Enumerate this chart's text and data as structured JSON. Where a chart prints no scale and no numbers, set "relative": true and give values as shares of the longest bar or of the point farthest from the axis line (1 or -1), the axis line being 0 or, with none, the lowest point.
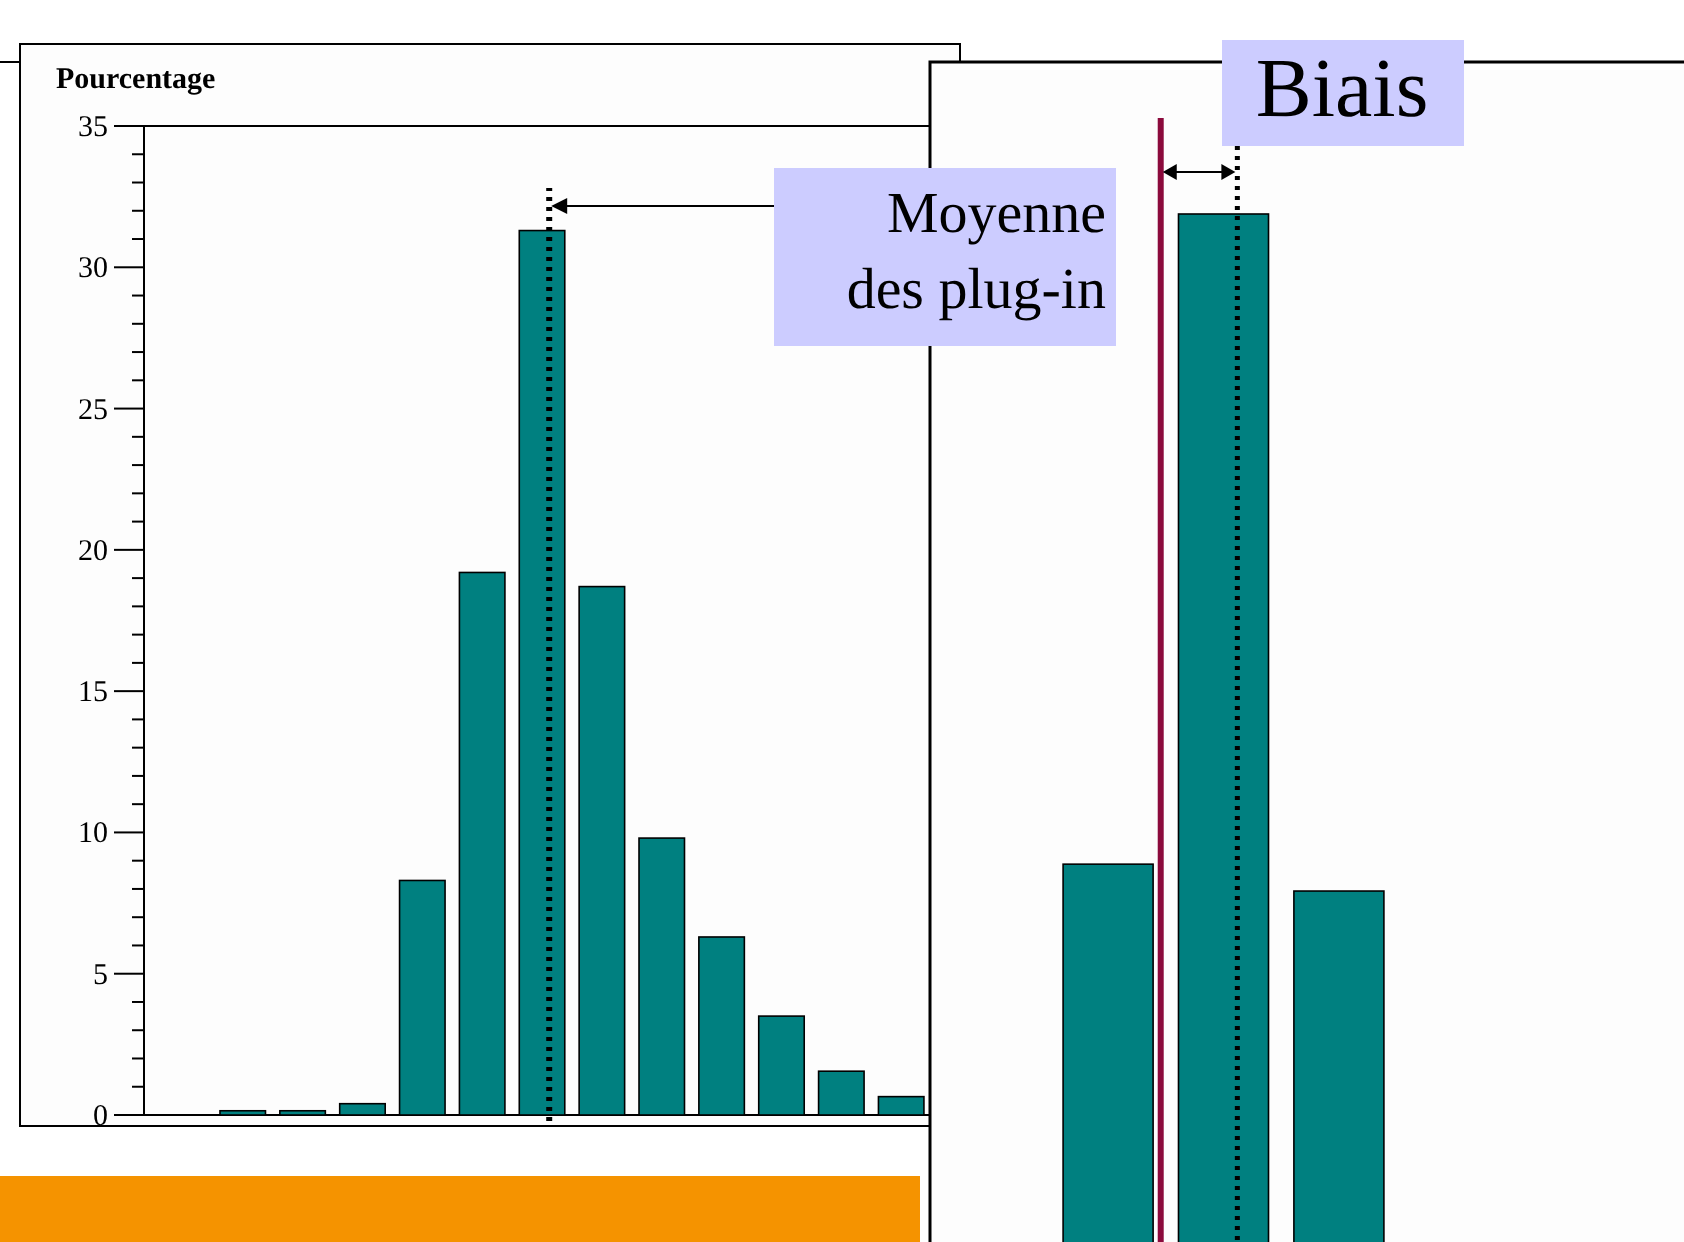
{
  "chart_data": [
    {
      "type": "bar",
      "title": "Pourcentage",
      "categories": [
        null,
        null,
        null,
        null,
        null,
        null,
        null,
        null,
        null,
        null,
        null,
        null
      ],
      "values": [
        0.15,
        0.15,
        0.4,
        8.3,
        19.2,
        31.3,
        18.7,
        9.8,
        6.3,
        3.5,
        1.55,
        0.65
      ],
      "color": "#008080",
      "ylim": [
        0,
        35
      ],
      "yticks": [
        0,
        5,
        10,
        15,
        20,
        25,
        30,
        35
      ],
      "tick_labels": "y",
      "annotations": [
        "Moyenne\ndes plug-in"
      ]
    },
    {
      "type": "bar",
      "relative": true,
      "categories": [
        null,
        null,
        null
      ],
      "values": [
        0.613,
        1,
        0.597
      ],
      "color": "#008080",
      "tick_labels": false,
      "annotations": [
        "Biais"
      ]
    }
  ]
}
